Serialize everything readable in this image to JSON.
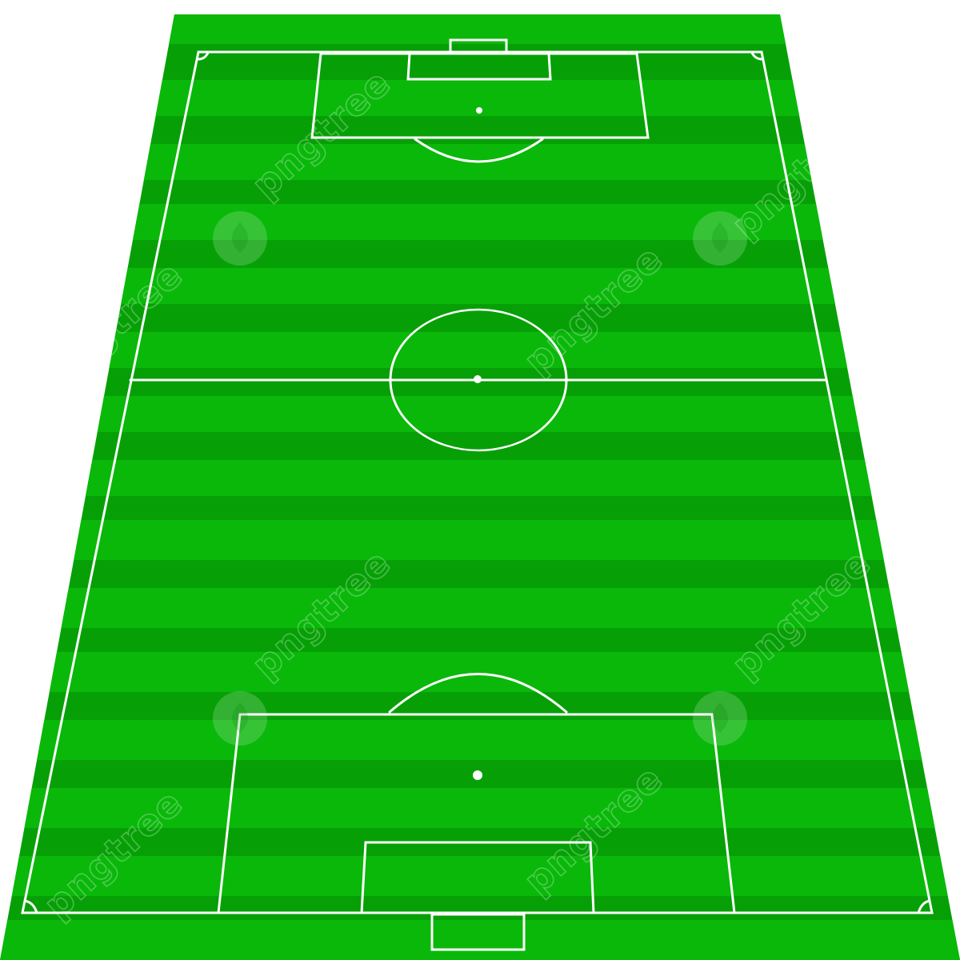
{
  "scene": {
    "subject": "soccer pitch",
    "colors": {
      "background": "#ffffff",
      "grass_light": "#0ab80a",
      "grass_dark": "#06a006",
      "lines": "#ffffff"
    }
  },
  "watermark": {
    "text": "pngtree",
    "icon": "pngtree-leaf-logo-icon"
  }
}
